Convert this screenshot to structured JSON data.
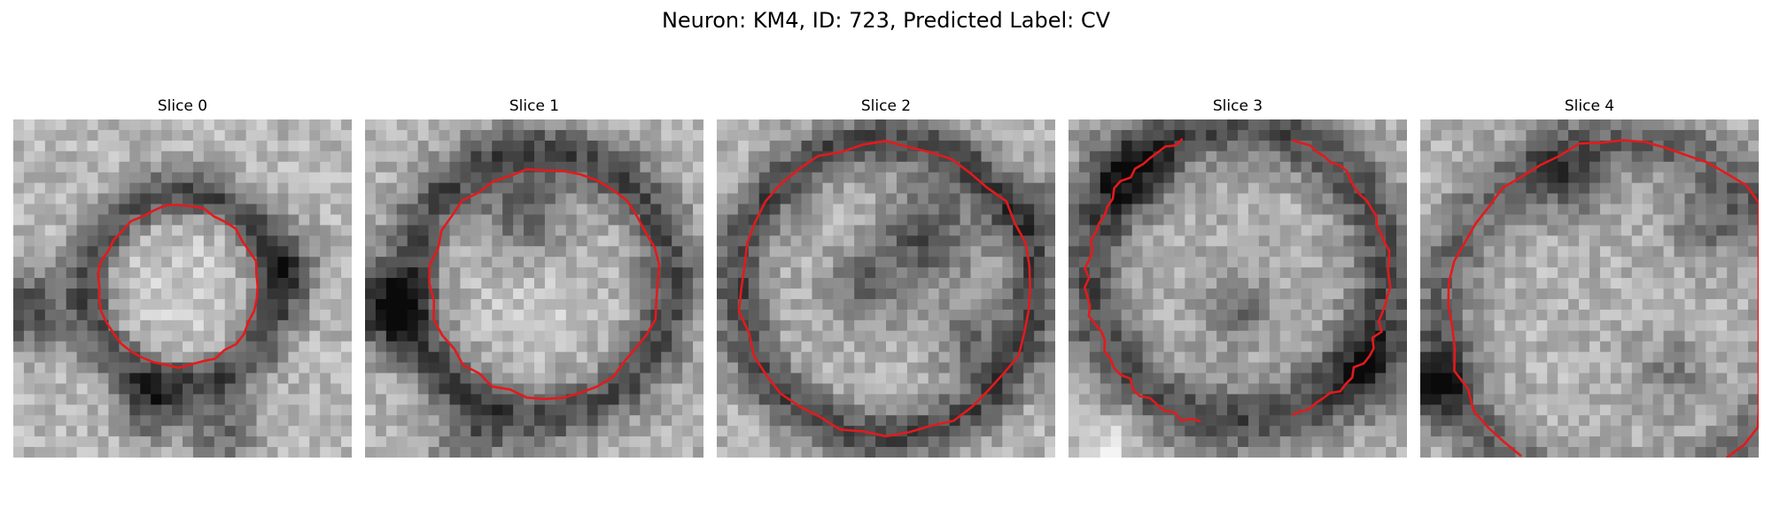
{
  "figure": {
    "title": "Neuron: KM4, ID: 723, Predicted Label: CV",
    "contour_color": "#e31a1c"
  },
  "panels": [
    {
      "title": "Slice 0",
      "contour": "ring (small, centered)"
    },
    {
      "title": "Slice 1",
      "contour": "ring (medium, centered)"
    },
    {
      "title": "Slice 2",
      "contour": "ring (large, centered)"
    },
    {
      "title": "Slice 3",
      "contour": "arc (open at top and bottom-right)"
    },
    {
      "title": "Slice 4",
      "contour": "arc (open at bottom)"
    }
  ]
}
